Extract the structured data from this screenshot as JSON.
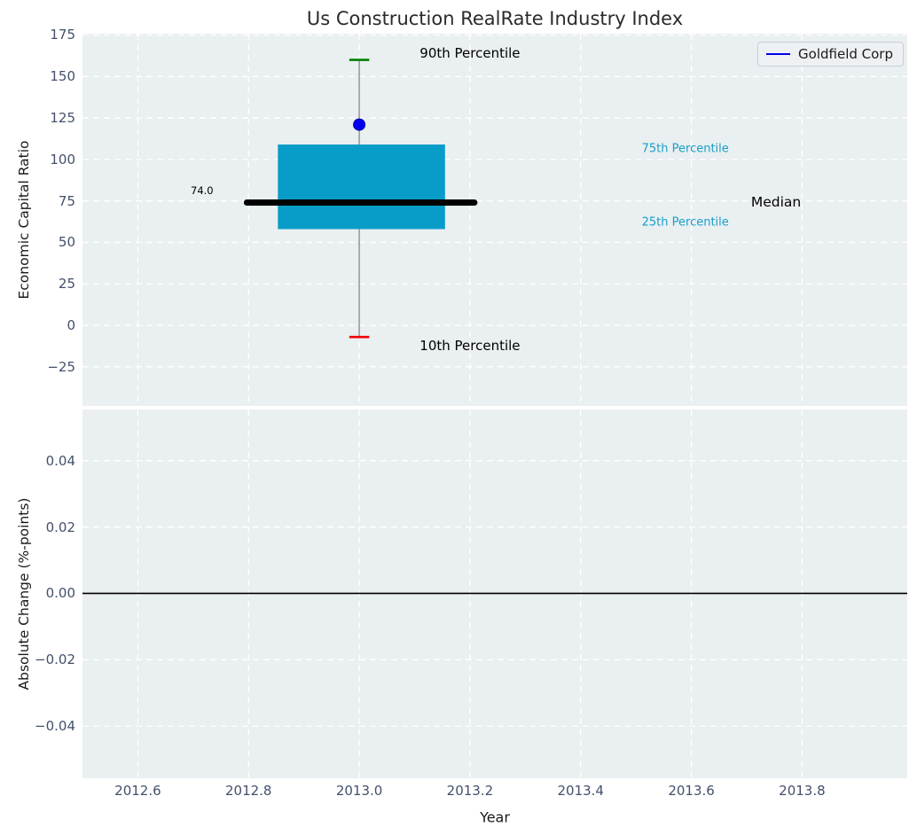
{
  "title": "Us Construction RealRate Industry Index",
  "legend": {
    "label": "Goldfield Corp"
  },
  "colors": {
    "plot_bg": "#eaeff1",
    "grid": "#ffffff",
    "box_fill": "#089dc9",
    "whisker": "#7f7f7f",
    "cap_top": "#008000",
    "cap_bottom": "#f00000",
    "median_line": "#000000",
    "point_fill": "#0000f0",
    "point_edge": "#0000a0",
    "legend_line": "#0000e6",
    "tick_label": "#43506b",
    "axis_label": "#1a1a1a",
    "percentile_text": "#169fca",
    "zero_line": "#000000"
  },
  "chart_data": [
    {
      "type": "boxplot",
      "title": "Us Construction RealRate Industry Index",
      "ylabel": "Economic Capital Ratio",
      "xlim": [
        2012.5,
        2013.99
      ],
      "ylim": [
        -48.6,
        175.8
      ],
      "grid": true,
      "yticks": [
        {
          "v": 175,
          "label": "175"
        },
        {
          "v": 150,
          "label": "150"
        },
        {
          "v": 125,
          "label": "125"
        },
        {
          "v": 100,
          "label": "100"
        },
        {
          "v": 75,
          "label": "75"
        },
        {
          "v": 50,
          "label": "50"
        },
        {
          "v": 25,
          "label": "25"
        },
        {
          "v": 0,
          "label": "0"
        },
        {
          "v": -25,
          "label": "−25"
        }
      ],
      "box": {
        "x_center": 2013.0,
        "box_left": 2012.853,
        "box_right": 2013.155,
        "p10": -7,
        "p25": 58,
        "median": 74,
        "p75": 109,
        "p90": 160,
        "median_span": [
          2012.797,
          2013.208
        ],
        "cap_halfwidth": 0.018
      },
      "company_point": {
        "label": "Goldfield Corp",
        "x": 2013.0,
        "y": 121
      },
      "annotations": [
        {
          "text": "90th Percentile",
          "x": 2013.2,
          "y": 164,
          "size": 15,
          "color": "#000000"
        },
        {
          "text": "10th Percentile",
          "x": 2013.2,
          "y": -12.3,
          "size": 15,
          "color": "#000000"
        },
        {
          "text": "75th Percentile",
          "x": 2013.589,
          "y": 106.2,
          "size": 13,
          "color": "#169fca"
        },
        {
          "text": "25th Percentile",
          "x": 2013.589,
          "y": 62.2,
          "size": 13,
          "color": "#169fca"
        },
        {
          "text": "Median",
          "x": 2013.753,
          "y": 74.2,
          "size": 15.5,
          "color": "#000000"
        },
        {
          "text": "74.0",
          "x": 2012.716,
          "y": 81.3,
          "size": 11.5,
          "color": "#000000"
        }
      ],
      "legend_entries": [
        {
          "label": "Goldfield Corp",
          "color": "#0000e6"
        }
      ]
    },
    {
      "type": "line",
      "ylabel": "Absolute Change (%-points)",
      "xlabel": "Year",
      "xlim": [
        2012.5,
        2013.99
      ],
      "ylim": [
        -0.0557,
        0.0554
      ],
      "grid": true,
      "yticks": [
        {
          "v": 0.04,
          "label": "0.04"
        },
        {
          "v": 0.02,
          "label": "0.02"
        },
        {
          "v": 0.0,
          "label": "0.00"
        },
        {
          "v": -0.02,
          "label": "−0.02"
        },
        {
          "v": -0.04,
          "label": "−0.04"
        }
      ],
      "xticks": [
        {
          "v": 2012.6,
          "label": "2012.6"
        },
        {
          "v": 2012.8,
          "label": "2012.8"
        },
        {
          "v": 2013.0,
          "label": "2013.0"
        },
        {
          "v": 2013.2,
          "label": "2013.2"
        },
        {
          "v": 2013.4,
          "label": "2013.4"
        },
        {
          "v": 2013.6,
          "label": "2013.6"
        },
        {
          "v": 2013.8,
          "label": "2013.8"
        }
      ],
      "hline_y": 0.0
    }
  ]
}
